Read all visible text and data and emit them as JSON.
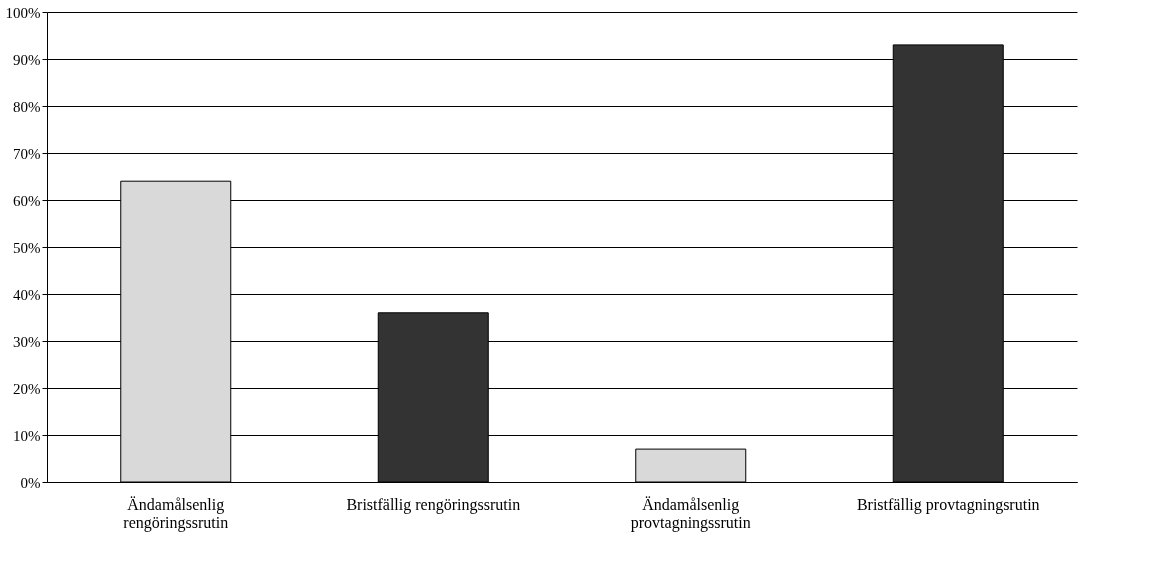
{
  "chart_data": {
    "type": "bar",
    "categories": [
      "Ändamålsenlig rengöringssrutin",
      "Bristfällig rengöringssrutin",
      "Ändamålsenlig provtagningssrutin",
      "Bristfällig provtagningsrutin"
    ],
    "values": [
      64,
      36,
      7,
      93
    ],
    "colors": [
      "#d9d9d9",
      "#333333",
      "#d9d9d9",
      "#333333"
    ],
    "ylim": [
      0,
      100
    ],
    "yticks": [
      {
        "value": 0,
        "label": "0%"
      },
      {
        "value": 10,
        "label": "10%"
      },
      {
        "value": 20,
        "label": "20%"
      },
      {
        "value": 30,
        "label": "30%"
      },
      {
        "value": 40,
        "label": "40%"
      },
      {
        "value": 50,
        "label": "50%"
      },
      {
        "value": 60,
        "label": "60%"
      },
      {
        "value": 70,
        "label": "70%"
      },
      {
        "value": 80,
        "label": "80%"
      },
      {
        "value": 90,
        "label": "90%"
      },
      {
        "value": 100,
        "label": "100%"
      }
    ],
    "grid": "y"
  }
}
